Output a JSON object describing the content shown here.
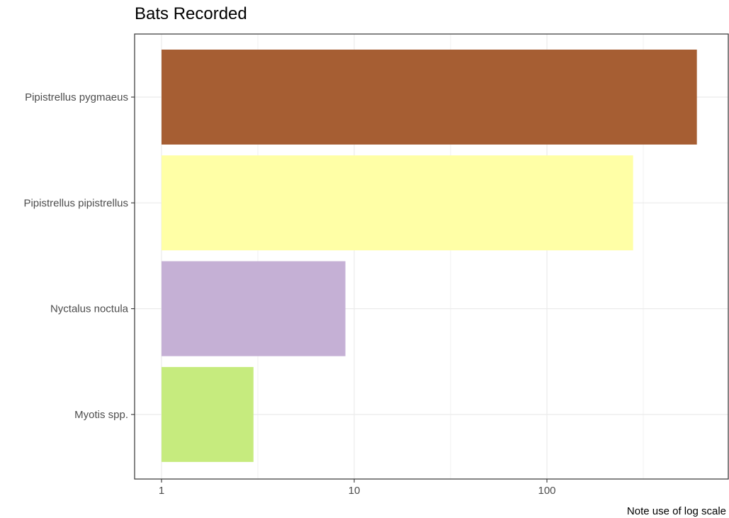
{
  "chart_data": {
    "type": "bar",
    "orientation": "horizontal",
    "title": "Bats Recorded",
    "caption": "Note use of log scale",
    "xlabel": "",
    "ylabel": "",
    "x_scale": "log10",
    "xlim": [
      0.87,
      850
    ],
    "x_ticks": [
      1,
      10,
      100
    ],
    "x_tick_labels": [
      "1",
      "10",
      "100"
    ],
    "grid": true,
    "legend": "none",
    "categories": [
      "Pipistrellus pygmaeus",
      "Pipistrellus pipistrellus",
      "Nyctalus noctula",
      "Myotis spp."
    ],
    "values": [
      600,
      280,
      9,
      3
    ],
    "colors": [
      "#a65e33",
      "#ffffa6",
      "#c5b0d5",
      "#c6eb7e"
    ]
  }
}
